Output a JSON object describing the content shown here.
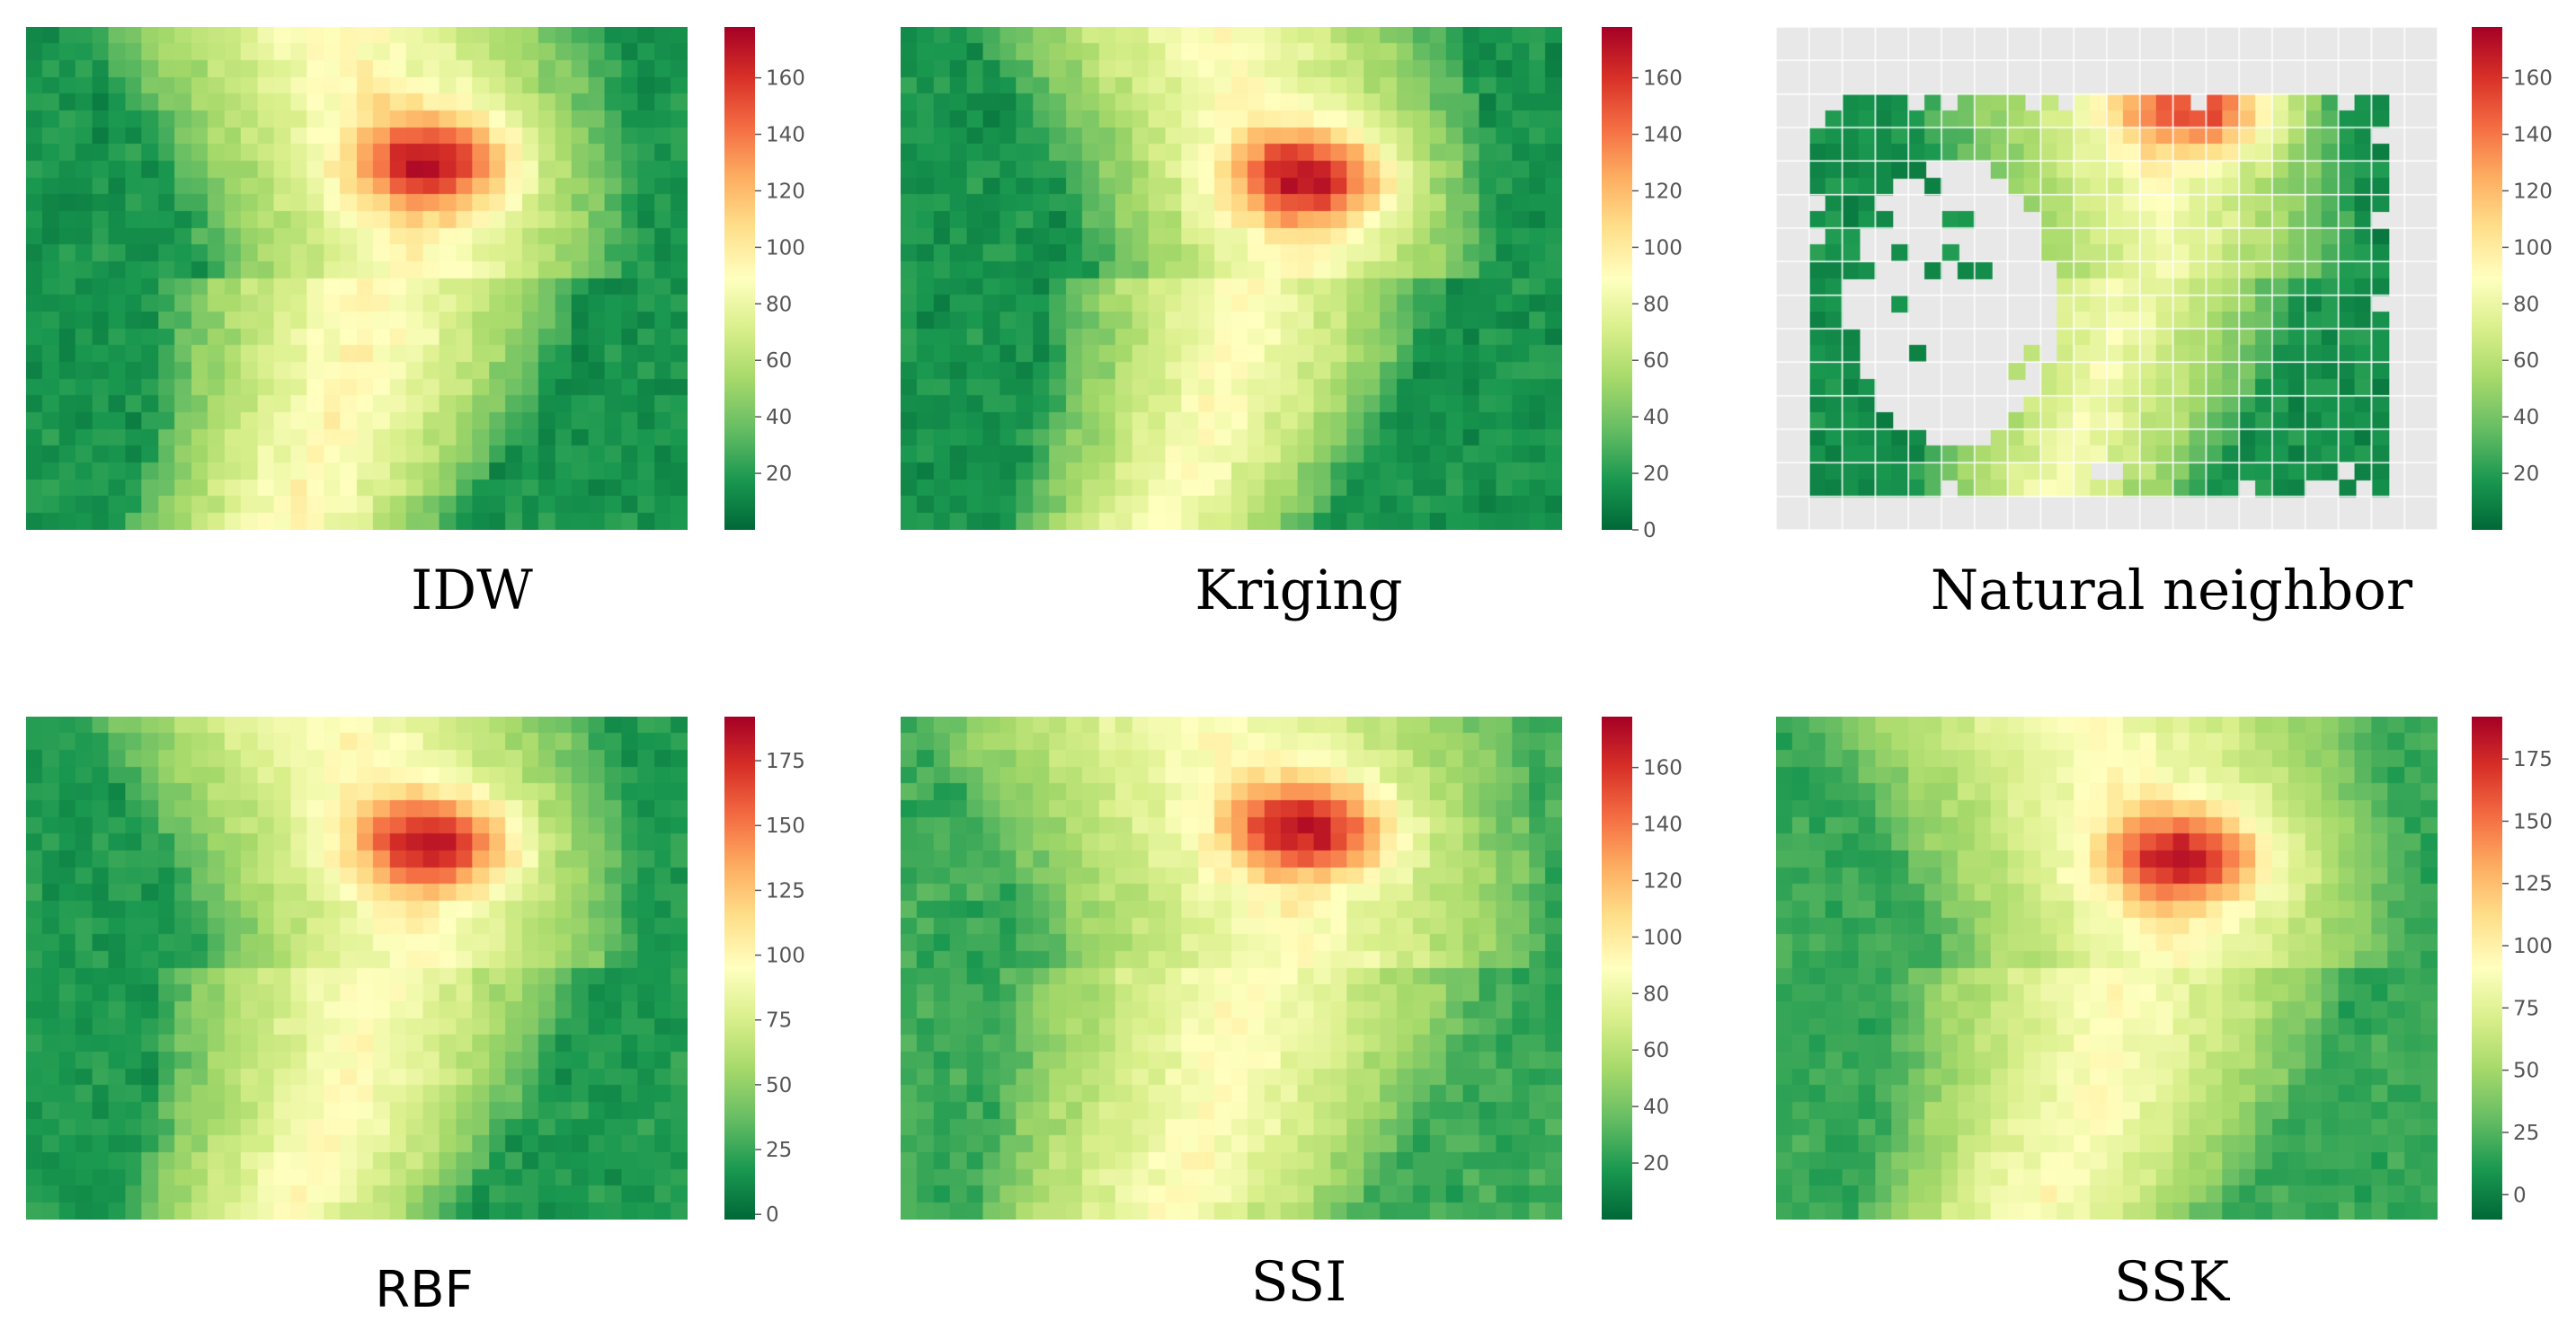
{
  "chart_data": [
    {
      "type": "heatmap",
      "caption": "IDW",
      "colorbar_ticks": [
        "20",
        "40",
        "60",
        "80",
        "100",
        "120",
        "140",
        "160"
      ],
      "colorbar_tick_values": [
        20,
        40,
        60,
        80,
        100,
        120,
        140,
        160
      ],
      "colorbar_range": [
        0,
        178
      ],
      "colormap": "RdYlGn_r",
      "grid": false,
      "pattern": {
        "seed": 11,
        "hot_x": 0.62,
        "hot_y": 0.27,
        "peak": 175,
        "corridor_top": 0.47,
        "corridor_bottom": 0.5,
        "corridor_width": 0.14,
        "corridor_level": 92,
        "base": 12
      }
    },
    {
      "type": "heatmap",
      "caption": "Kriging",
      "colorbar_ticks": [
        "0",
        "20",
        "40",
        "60",
        "80",
        "100",
        "120",
        "140",
        "160"
      ],
      "colorbar_tick_values": [
        0,
        20,
        40,
        60,
        80,
        100,
        120,
        140,
        160
      ],
      "colorbar_range": [
        0,
        178
      ],
      "colormap": "RdYlGn_r",
      "grid": false,
      "pattern": {
        "seed": 23,
        "hot_x": 0.62,
        "hot_y": 0.3,
        "peak": 178,
        "corridor_top": 0.45,
        "corridor_bottom": 0.5,
        "corridor_width": 0.13,
        "corridor_level": 88,
        "base": 12
      }
    },
    {
      "type": "heatmap",
      "caption": "Natural neighbor",
      "colorbar_ticks": [
        "20",
        "40",
        "60",
        "80",
        "100",
        "120",
        "140",
        "160"
      ],
      "colorbar_tick_values": [
        20,
        40,
        60,
        80,
        100,
        120,
        140,
        160
      ],
      "colorbar_range": [
        0,
        178
      ],
      "colormap": "RdYlGn_r",
      "grid": true,
      "missing_color": "#e8e8e8",
      "pattern": {
        "seed": 37,
        "hot_x": 0.65,
        "hot_y": 0.16,
        "peak": 170,
        "corridor_top": 0.5,
        "corridor_bottom": 0.48,
        "corridor_width": 0.12,
        "corridor_level": 82,
        "base": 10
      }
    },
    {
      "type": "heatmap",
      "caption": "RBF",
      "colorbar_ticks": [
        "0",
        "25",
        "50",
        "75",
        "100",
        "125",
        "150",
        "175"
      ],
      "colorbar_tick_values": [
        0,
        25,
        50,
        75,
        100,
        125,
        150,
        175
      ],
      "colorbar_range": [
        -2,
        192
      ],
      "colormap": "RdYlGn_r",
      "grid": false,
      "pattern": {
        "seed": 51,
        "hot_x": 0.62,
        "hot_y": 0.25,
        "peak": 190,
        "corridor_top": 0.5,
        "corridor_bottom": 0.5,
        "corridor_width": 0.14,
        "corridor_level": 95,
        "base": 14
      }
    },
    {
      "type": "heatmap",
      "caption": "SSI",
      "colorbar_ticks": [
        "20",
        "40",
        "60",
        "80",
        "100",
        "120",
        "140",
        "160"
      ],
      "colorbar_tick_values": [
        20,
        40,
        60,
        80,
        100,
        120,
        140,
        160
      ],
      "colorbar_range": [
        0,
        178
      ],
      "colormap": "RdYlGn_r",
      "grid": false,
      "pattern": {
        "seed": 67,
        "hot_x": 0.62,
        "hot_y": 0.22,
        "peak": 178,
        "corridor_top": 0.45,
        "corridor_bottom": 0.5,
        "corridor_width": 0.16,
        "corridor_level": 88,
        "base": 22
      }
    },
    {
      "type": "heatmap",
      "caption": "SSK",
      "colorbar_ticks": [
        "0",
        "25",
        "50",
        "75",
        "100",
        "125",
        "150",
        "175"
      ],
      "colorbar_tick_values": [
        0,
        25,
        50,
        75,
        100,
        125,
        150,
        175
      ],
      "colorbar_range": [
        -10,
        192
      ],
      "colormap": "RdYlGn_r",
      "grid": false,
      "pattern": {
        "seed": 83,
        "hot_x": 0.62,
        "hot_y": 0.28,
        "peak": 188,
        "corridor_top": 0.45,
        "corridor_bottom": 0.48,
        "corridor_width": 0.15,
        "corridor_level": 90,
        "base": 14
      }
    }
  ]
}
